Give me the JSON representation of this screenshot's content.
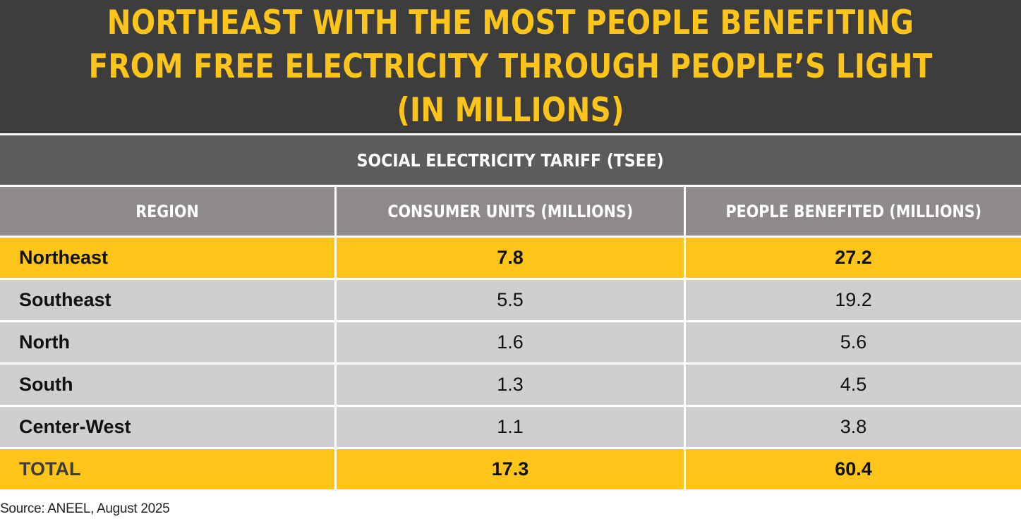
{
  "title": "NORTHEAST WITH THE MOST PEOPLE BENEFITING FROM FREE ELECTRICITY THROUGH PEOPLE’S LIGHT (IN MILLIONS)",
  "subtitle": "SOCIAL ELECTRICITY TARIFF (TSEE)",
  "source": "Source: ANEEL, August 2025",
  "colors": {
    "title_bg": "#3d3d3d",
    "accent": "#fdc419",
    "subtitle_bg": "#5d5b5b",
    "header_bg": "#8e8a89",
    "row_bg": "#d0cecf"
  },
  "chart_data": {
    "type": "table",
    "title": "NORTHEAST WITH THE MOST PEOPLE BENEFITING FROM FREE ELECTRICITY THROUGH PEOPLE’S LIGHT (IN MILLIONS)",
    "columns": [
      "REGION",
      "CONSUMER UNITS (MILLIONS)",
      "PEOPLE BENEFITED (MILLIONS)"
    ],
    "rows": [
      {
        "region": "Northeast",
        "consumer_units": "7.8",
        "people": "27.2",
        "highlight": true
      },
      {
        "region": "Southeast",
        "consumer_units": "5.5",
        "people": "19.2",
        "highlight": false
      },
      {
        "region": "North",
        "consumer_units": "1.6",
        "people": "5.6",
        "highlight": false
      },
      {
        "region": "South",
        "consumer_units": "1.3",
        "people": "4.5",
        "highlight": false
      },
      {
        "region": "Center-West",
        "consumer_units": "1.1",
        "people": "3.8",
        "highlight": false
      }
    ],
    "total": {
      "label": "TOTAL",
      "consumer_units": "17.3",
      "people": "60.4"
    }
  }
}
